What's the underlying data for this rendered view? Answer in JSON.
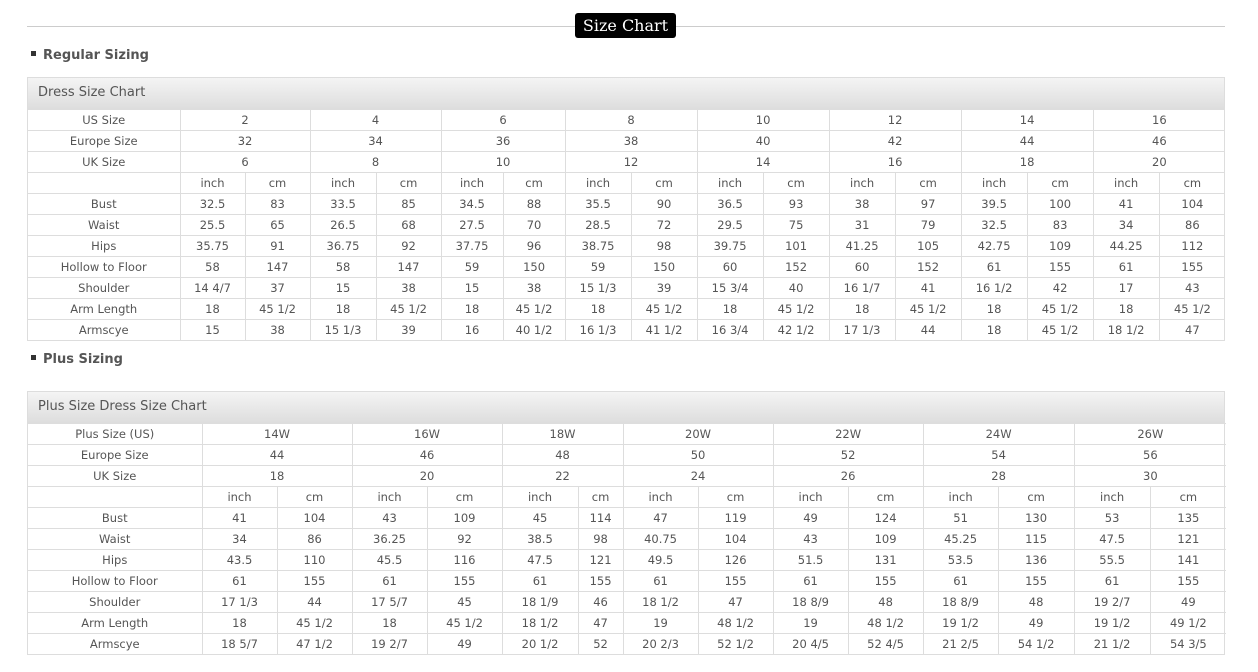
{
  "page_title": "Size Chart",
  "regular": {
    "section_label": "Regular Sizing",
    "chart_title": "Dress Size Chart",
    "header_rows": [
      {
        "label": "US Size",
        "values": [
          "2",
          "4",
          "6",
          "8",
          "10",
          "12",
          "14",
          "16"
        ]
      },
      {
        "label": "Europe Size",
        "values": [
          "32",
          "34",
          "36",
          "38",
          "40",
          "42",
          "44",
          "46"
        ]
      },
      {
        "label": "UK Size",
        "values": [
          "6",
          "8",
          "10",
          "12",
          "14",
          "16",
          "18",
          "20"
        ]
      }
    ],
    "unit_inch": "inch",
    "unit_cm": "cm",
    "rows": [
      {
        "label": "Bust",
        "values": [
          "32.5",
          "83",
          "33.5",
          "85",
          "34.5",
          "88",
          "35.5",
          "90",
          "36.5",
          "93",
          "38",
          "97",
          "39.5",
          "100",
          "41",
          "104"
        ]
      },
      {
        "label": "Waist",
        "values": [
          "25.5",
          "65",
          "26.5",
          "68",
          "27.5",
          "70",
          "28.5",
          "72",
          "29.5",
          "75",
          "31",
          "79",
          "32.5",
          "83",
          "34",
          "86"
        ]
      },
      {
        "label": "Hips",
        "values": [
          "35.75",
          "91",
          "36.75",
          "92",
          "37.75",
          "96",
          "38.75",
          "98",
          "39.75",
          "101",
          "41.25",
          "105",
          "42.75",
          "109",
          "44.25",
          "112"
        ]
      },
      {
        "label": "Hollow to Floor",
        "values": [
          "58",
          "147",
          "58",
          "147",
          "59",
          "150",
          "59",
          "150",
          "60",
          "152",
          "60",
          "152",
          "61",
          "155",
          "61",
          "155"
        ]
      },
      {
        "label": "Shoulder",
        "values": [
          "14 4/7",
          "37",
          "15",
          "38",
          "15",
          "38",
          "15 1/3",
          "39",
          "15 3/4",
          "40",
          "16 1/7",
          "41",
          "16 1/2",
          "42",
          "17",
          "43"
        ]
      },
      {
        "label": "Arm Length",
        "values": [
          "18",
          "45 1/2",
          "18",
          "45 1/2",
          "18",
          "45 1/2",
          "18",
          "45 1/2",
          "18",
          "45 1/2",
          "18",
          "45 1/2",
          "18",
          "45 1/2",
          "18",
          "45 1/2"
        ]
      },
      {
        "label": "Armscye",
        "values": [
          "15",
          "38",
          "15 1/3",
          "39",
          "16",
          "40 1/2",
          "16 1/3",
          "41 1/2",
          "16 3/4",
          "42 1/2",
          "17 1/3",
          "44",
          "18",
          "45 1/2",
          "18 1/2",
          "47"
        ]
      }
    ]
  },
  "plus": {
    "section_label": "Plus Sizing",
    "chart_title": "Plus Size Dress Size Chart",
    "header_rows": [
      {
        "label": "Plus Size (US)",
        "values": [
          "14W",
          "16W",
          "18W",
          "20W",
          "22W",
          "24W",
          "26W"
        ]
      },
      {
        "label": "Europe Size",
        "values": [
          "44",
          "46",
          "48",
          "50",
          "52",
          "54",
          "56"
        ]
      },
      {
        "label": "UK Size",
        "values": [
          "18",
          "20",
          "22",
          "24",
          "26",
          "28",
          "30"
        ]
      }
    ],
    "unit_inch": "inch",
    "unit_cm": "cm",
    "rows": [
      {
        "label": "Bust",
        "values": [
          "41",
          "104",
          "43",
          "109",
          "45",
          "114",
          "47",
          "119",
          "49",
          "124",
          "51",
          "130",
          "53",
          "135"
        ]
      },
      {
        "label": "Waist",
        "values": [
          "34",
          "86",
          "36.25",
          "92",
          "38.5",
          "98",
          "40.75",
          "104",
          "43",
          "109",
          "45.25",
          "115",
          "47.5",
          "121"
        ]
      },
      {
        "label": "Hips",
        "values": [
          "43.5",
          "110",
          "45.5",
          "116",
          "47.5",
          "121",
          "49.5",
          "126",
          "51.5",
          "131",
          "53.5",
          "136",
          "55.5",
          "141"
        ]
      },
      {
        "label": "Hollow to Floor",
        "values": [
          "61",
          "155",
          "61",
          "155",
          "61",
          "155",
          "61",
          "155",
          "61",
          "155",
          "61",
          "155",
          "61",
          "155"
        ]
      },
      {
        "label": "Shoulder",
        "values": [
          "17 1/3",
          "44",
          "17 5/7",
          "45",
          "18 1/9",
          "46",
          "18 1/2",
          "47",
          "18 8/9",
          "48",
          "18 8/9",
          "48",
          "19 2/7",
          "49"
        ]
      },
      {
        "label": "Arm Length",
        "values": [
          "18",
          "45 1/2",
          "18",
          "45 1/2",
          "18 1/2",
          "47",
          "19",
          "48 1/2",
          "19",
          "48 1/2",
          "19 1/2",
          "49",
          "19 1/2",
          "49 1/2"
        ]
      },
      {
        "label": "Armscye",
        "values": [
          "18 5/7",
          "47 1/2",
          "19 2/7",
          "49",
          "20 1/2",
          "52",
          "20 2/3",
          "52 1/2",
          "20 4/5",
          "52 4/5",
          "21 2/5",
          "54 1/2",
          "21 1/2",
          "54 3/5"
        ]
      }
    ]
  }
}
